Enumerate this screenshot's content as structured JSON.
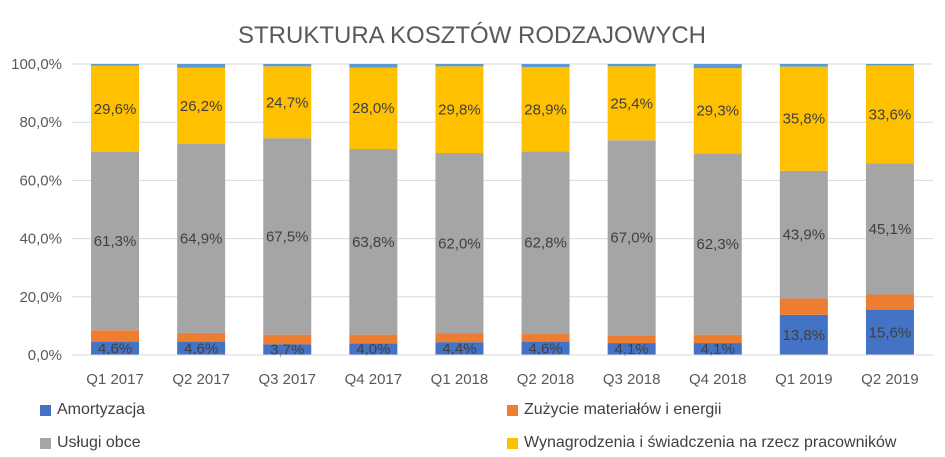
{
  "chart_data": {
    "type": "bar",
    "stacked": true,
    "title": "STRUKTURA KOSZTÓW RODZAJOWYCH",
    "categories": [
      "Q1 2017",
      "Q2 2017",
      "Q3 2017",
      "Q4 2017",
      "Q1 2018",
      "Q2 2018",
      "Q3 2018",
      "Q4 2018",
      "Q1 2019",
      "Q2 2019"
    ],
    "ylim": [
      0,
      100
    ],
    "yticks": [
      "0,0%",
      "20,0%",
      "40,0%",
      "60,0%",
      "80,0%",
      "100,0%"
    ],
    "grid": true,
    "legend_position": "bottom",
    "series": [
      {
        "name": "Amortyzacja",
        "color": "#4472C4",
        "values": [
          4.6,
          4.6,
          3.7,
          4.0,
          4.4,
          4.6,
          4.1,
          4.1,
          13.8,
          15.6
        ],
        "labels": [
          "4,6%",
          "4,6%",
          "3,7%",
          "4,0%",
          "4,4%",
          "4,6%",
          "4,1%",
          "4,1%",
          "13,8%",
          "15,6%"
        ]
      },
      {
        "name": "Zużycie materiałów i energii",
        "color": "#ED7D31",
        "values": [
          3.9,
          3.0,
          3.3,
          3.0,
          3.0,
          2.6,
          2.7,
          2.9,
          5.6,
          5.2
        ],
        "labels": []
      },
      {
        "name": "Usługi obce",
        "color": "#A5A5A5",
        "values": [
          61.3,
          64.9,
          67.5,
          63.8,
          62.0,
          62.8,
          67.0,
          62.3,
          43.9,
          45.1
        ],
        "labels": [
          "61,3%",
          "64,9%",
          "67,5%",
          "63,8%",
          "62,0%",
          "62,8%",
          "67,0%",
          "62,3%",
          "43,9%",
          "45,1%"
        ]
      },
      {
        "name": "Wynagrodzenia i świadczenia na rzecz pracowników",
        "color": "#FFC000",
        "values": [
          29.6,
          26.2,
          24.7,
          28.0,
          29.8,
          28.9,
          25.4,
          29.3,
          35.8,
          33.6
        ],
        "labels": [
          "29,6%",
          "26,2%",
          "24,7%",
          "28,0%",
          "29,8%",
          "28,9%",
          "25,4%",
          "29,3%",
          "35,8%",
          "33,6%"
        ]
      },
      {
        "name": "",
        "color": "#5B9BD5",
        "values": [
          0.6,
          1.3,
          0.8,
          1.2,
          0.8,
          1.1,
          0.8,
          1.4,
          0.9,
          0.5
        ],
        "labels": []
      }
    ],
    "legend": [
      {
        "name": "Amortyzacja",
        "color": "#4472C4"
      },
      {
        "name": "Zużycie materiałów i energii",
        "color": "#ED7D31"
      },
      {
        "name": "Usługi obce",
        "color": "#A5A5A5"
      },
      {
        "name": "Wynagrodzenia i świadczenia na rzecz pracowników",
        "color": "#FFC000"
      }
    ]
  }
}
